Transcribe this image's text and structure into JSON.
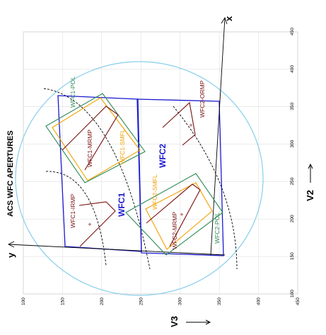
{
  "title": "ACS WFC APERTURES",
  "axes": {
    "v2_label": "V2",
    "v3_label": "V3",
    "x_label": "x",
    "y_label": "y",
    "v3_ticks": [
      "100",
      "150",
      "200",
      "250",
      "300",
      "350",
      "400",
      "450"
    ],
    "v2_ticks": [
      "100",
      "150",
      "200",
      "250",
      "300",
      "350",
      "400",
      "450"
    ]
  },
  "chips": {
    "wfc1": "WFC1",
    "wfc2": "WFC2"
  },
  "apertures": {
    "wfc1_pol": "WFC1-POL",
    "wfc1_mrmp": "WFC1-MRMP",
    "wfc1_smfl": "WFC1-SMFL",
    "wfc1_irmp": "WFC1-IRMP",
    "wfc2_ormp": "WFC2-ORMP",
    "wfc2_smfl": "WFC2-SMFL",
    "wfc2_mrmp": "WFC2-MRMP",
    "wfc2_pol": "WFC2-POL"
  },
  "colors": {
    "chip": "#1a1ad0",
    "pol": "#2e8b57",
    "smfl": "#f0a000",
    "mrmp": "#7a1010",
    "circle": "#87ceeb",
    "grid": "#d8d8d8",
    "arc": "#000000"
  }
}
